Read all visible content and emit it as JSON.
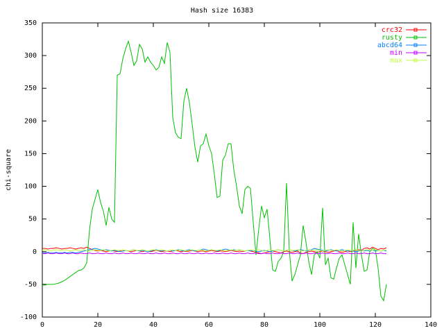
{
  "chart_data": {
    "type": "line",
    "title": "Hash size 16383",
    "y_label": "chi-square",
    "legend": "top-right",
    "grid": false,
    "xlim": [
      0,
      140
    ],
    "xticks": [
      0,
      20,
      40,
      60,
      80,
      100,
      120,
      140
    ],
    "ylim": [
      -100,
      350
    ],
    "yticks": [
      -100,
      -50,
      0,
      50,
      100,
      150,
      200,
      250,
      300,
      350
    ],
    "x": [
      0,
      1,
      2,
      3,
      4,
      5,
      6,
      7,
      8,
      9,
      10,
      11,
      12,
      13,
      14,
      15,
      16,
      17,
      18,
      19,
      20,
      21,
      22,
      23,
      24,
      25,
      26,
      27,
      28,
      29,
      30,
      31,
      32,
      33,
      34,
      35,
      36,
      37,
      38,
      39,
      40,
      41,
      42,
      43,
      44,
      45,
      46,
      47,
      48,
      49,
      50,
      51,
      52,
      53,
      54,
      55,
      56,
      57,
      58,
      59,
      60,
      61,
      62,
      63,
      64,
      65,
      66,
      67,
      68,
      69,
      70,
      71,
      72,
      73,
      74,
      75,
      76,
      77,
      78,
      79,
      80,
      81,
      82,
      83,
      84,
      85,
      86,
      87,
      88,
      89,
      90,
      91,
      92,
      93,
      94,
      95,
      96,
      97,
      98,
      99,
      100,
      101,
      102,
      103,
      104,
      105,
      106,
      107,
      108,
      109,
      110,
      111,
      112,
      113,
      114,
      115,
      116,
      117,
      118,
      119,
      120,
      121,
      122,
      123,
      124
    ],
    "series": [
      {
        "name": "crc32",
        "color": "#ff0000",
        "values": [
          5,
          5,
          4,
          5,
          5,
          6,
          5,
          4,
          5,
          5,
          6,
          5,
          4,
          5,
          6,
          5,
          7,
          5,
          3,
          2,
          1,
          2,
          1,
          0,
          1,
          2,
          1,
          0,
          1,
          1,
          2,
          1,
          0,
          1,
          2,
          1,
          0,
          1,
          1,
          0,
          1,
          2,
          1,
          0,
          1,
          1,
          0,
          1,
          2,
          1,
          0,
          1,
          0,
          1,
          2,
          1,
          0,
          1,
          1,
          0,
          1,
          2,
          1,
          0,
          1,
          1,
          0,
          1,
          2,
          1,
          0,
          1,
          0,
          1,
          2,
          1,
          0,
          -1,
          -2,
          -3,
          -2,
          -1,
          0,
          1,
          0,
          -1,
          -2,
          0,
          1,
          0,
          -1,
          0,
          1,
          -2,
          -3,
          -1,
          0,
          1,
          0,
          -1,
          0,
          1,
          0,
          -1,
          0,
          1,
          2,
          0,
          -1,
          0,
          1,
          0,
          1,
          2,
          3,
          2,
          5,
          6,
          4,
          7,
          5,
          3,
          5,
          4,
          6
        ]
      },
      {
        "name": "rusty",
        "color": "#00c000",
        "values": [
          -51,
          -51,
          -50,
          -50,
          -50,
          -49,
          -48,
          -46,
          -44,
          -41,
          -38,
          -35,
          -32,
          -29,
          -28,
          -25,
          -17,
          33,
          65,
          80,
          95,
          75,
          62,
          40,
          68,
          50,
          45,
          270,
          272,
          295,
          310,
          322,
          305,
          285,
          292,
          317,
          310,
          290,
          298,
          290,
          285,
          278,
          282,
          298,
          288,
          320,
          305,
          205,
          182,
          175,
          173,
          230,
          250,
          228,
          195,
          160,
          137,
          162,
          165,
          180,
          162,
          150,
          118,
          83,
          85,
          140,
          148,
          165,
          165,
          125,
          100,
          70,
          58,
          95,
          100,
          97,
          45,
          -5,
          35,
          70,
          52,
          65,
          20,
          -28,
          -30,
          -15,
          -10,
          0,
          105,
          2,
          -45,
          -35,
          -20,
          -5,
          40,
          15,
          -15,
          -35,
          -5,
          0,
          -10,
          67,
          -20,
          -10,
          -40,
          -42,
          -25,
          -10,
          -5,
          -20,
          -35,
          -50,
          45,
          -25,
          27,
          -5,
          -30,
          -28,
          0,
          5,
          3,
          -25,
          -68,
          -75,
          -50
        ]
      },
      {
        "name": "abcd64",
        "color": "#0080ff",
        "values": [
          -2,
          -2,
          -1,
          -2,
          -2,
          -1,
          -2,
          -2,
          -1,
          -2,
          -1,
          -1,
          -2,
          -1,
          0,
          1,
          2,
          3,
          4,
          5,
          4,
          3,
          2,
          3,
          2,
          1,
          2,
          1,
          0,
          1,
          2,
          1,
          2,
          3,
          2,
          1,
          2,
          1,
          0,
          1,
          2,
          3,
          2,
          1,
          2,
          1,
          2,
          1,
          2,
          3,
          2,
          1,
          2,
          3,
          2,
          1,
          2,
          3,
          4,
          3,
          2,
          3,
          2,
          1,
          2,
          3,
          4,
          3,
          2,
          3,
          2,
          3,
          2,
          1,
          2,
          1,
          2,
          1,
          0,
          1,
          2,
          1,
          0,
          1,
          2,
          3,
          2,
          1,
          2,
          3,
          2,
          1,
          2,
          3,
          2,
          1,
          2,
          3,
          5,
          4,
          3,
          2,
          1,
          2,
          3,
          2,
          1,
          2,
          3,
          2,
          1,
          2,
          1,
          0,
          1,
          2,
          1,
          2,
          1,
          2,
          1,
          2,
          1,
          2,
          1
        ]
      },
      {
        "name": "min",
        "color": "#c000ff",
        "values": [
          -3,
          -3,
          -2,
          -3,
          -3,
          -2,
          -3,
          -3,
          -2,
          -3,
          -3,
          -2,
          -3,
          -3,
          -2,
          -3,
          -3,
          -2,
          -3,
          -3,
          -2,
          -3,
          -3,
          -2,
          -3,
          -3,
          -2,
          -3,
          -3,
          -2,
          -3,
          -3,
          -2,
          -3,
          -3,
          -2,
          -3,
          -3,
          -2,
          -3,
          -3,
          -2,
          -3,
          -3,
          -2,
          -3,
          -3,
          -2,
          -3,
          -3,
          -2,
          -3,
          -3,
          -2,
          -3,
          -3,
          -2,
          -3,
          -3,
          -2,
          -3,
          -3,
          -2,
          -3,
          -3,
          -2,
          -3,
          -3,
          -2,
          -3,
          -3,
          -2,
          -3,
          -3,
          -2,
          -3,
          -3,
          -2,
          -3,
          -3,
          -2,
          -3,
          -3,
          -2,
          -3,
          -3,
          -2,
          -3,
          -3,
          -2,
          -3,
          -3,
          -2,
          -3,
          -3,
          -2,
          -3,
          -3,
          -2,
          -3,
          -3,
          -2,
          -3,
          -3,
          -2,
          -3,
          -3,
          -2,
          -3,
          -3,
          -2,
          -3,
          -3,
          -2,
          -3,
          -3,
          -2,
          -3,
          -3,
          -2,
          -3,
          -3,
          -2,
          -3,
          -3
        ]
      },
      {
        "name": "max",
        "color": "#c0ff40",
        "values": [
          2,
          3,
          2,
          1,
          2,
          3,
          2,
          2,
          3,
          2,
          1,
          2,
          3,
          2,
          2,
          3,
          2,
          1,
          2,
          3,
          2,
          2,
          3,
          2,
          1,
          2,
          3,
          2,
          2,
          3,
          2,
          1,
          2,
          3,
          2,
          2,
          3,
          2,
          1,
          2,
          3,
          2,
          2,
          3,
          2,
          1,
          2,
          3,
          2,
          2,
          3,
          2,
          1,
          2,
          3,
          2,
          2,
          3,
          2,
          1,
          2,
          3,
          2,
          2,
          3,
          2,
          1,
          2,
          3,
          2,
          2,
          3,
          2,
          1,
          2,
          3,
          2,
          2,
          3,
          2,
          1,
          2,
          3,
          2,
          2,
          3,
          2,
          1,
          2,
          3,
          2,
          2,
          3,
          2,
          1,
          2,
          3,
          2,
          2,
          3,
          2,
          1,
          2,
          3,
          2,
          2,
          3,
          2,
          1,
          2,
          3,
          2,
          2,
          3,
          2,
          1,
          2,
          3,
          2,
          2,
          3,
          2,
          1,
          2,
          3
        ]
      }
    ]
  }
}
